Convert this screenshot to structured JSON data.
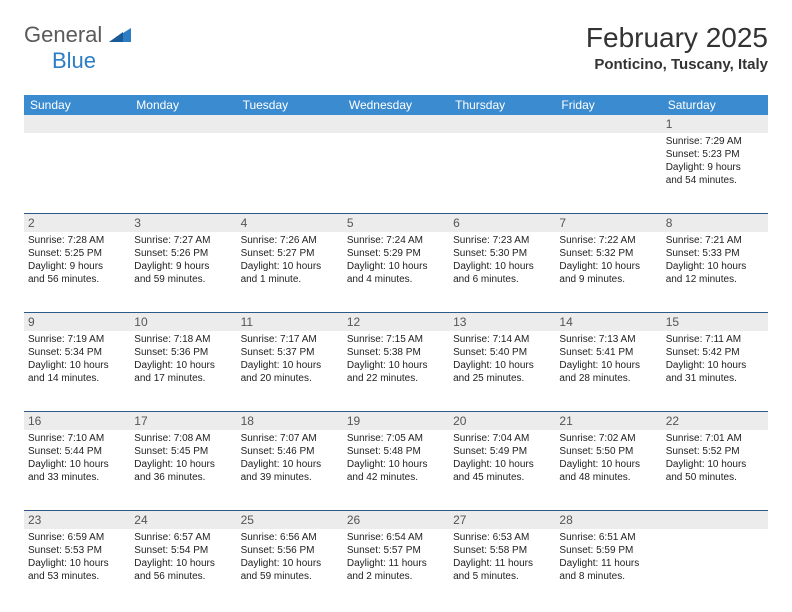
{
  "logo": {
    "general": "General",
    "blue": "Blue"
  },
  "title": "February 2025",
  "location": "Ponticino, Tuscany, Italy",
  "colors": {
    "header_bg": "#3b8bd0",
    "header_text": "#ffffff",
    "daynum_bg": "#ececec",
    "border": "#2d5a8a",
    "logo_gray": "#5a5a5a",
    "logo_blue": "#2d7dc4"
  },
  "day_labels": [
    "Sunday",
    "Monday",
    "Tuesday",
    "Wednesday",
    "Thursday",
    "Friday",
    "Saturday"
  ],
  "weeks": [
    {
      "nums": [
        "",
        "",
        "",
        "",
        "",
        "",
        "1"
      ],
      "cells": [
        [],
        [],
        [],
        [],
        [],
        [],
        [
          "Sunrise: 7:29 AM",
          "Sunset: 5:23 PM",
          "Daylight: 9 hours",
          "and 54 minutes."
        ]
      ]
    },
    {
      "nums": [
        "2",
        "3",
        "4",
        "5",
        "6",
        "7",
        "8"
      ],
      "cells": [
        [
          "Sunrise: 7:28 AM",
          "Sunset: 5:25 PM",
          "Daylight: 9 hours",
          "and 56 minutes."
        ],
        [
          "Sunrise: 7:27 AM",
          "Sunset: 5:26 PM",
          "Daylight: 9 hours",
          "and 59 minutes."
        ],
        [
          "Sunrise: 7:26 AM",
          "Sunset: 5:27 PM",
          "Daylight: 10 hours",
          "and 1 minute."
        ],
        [
          "Sunrise: 7:24 AM",
          "Sunset: 5:29 PM",
          "Daylight: 10 hours",
          "and 4 minutes."
        ],
        [
          "Sunrise: 7:23 AM",
          "Sunset: 5:30 PM",
          "Daylight: 10 hours",
          "and 6 minutes."
        ],
        [
          "Sunrise: 7:22 AM",
          "Sunset: 5:32 PM",
          "Daylight: 10 hours",
          "and 9 minutes."
        ],
        [
          "Sunrise: 7:21 AM",
          "Sunset: 5:33 PM",
          "Daylight: 10 hours",
          "and 12 minutes."
        ]
      ]
    },
    {
      "nums": [
        "9",
        "10",
        "11",
        "12",
        "13",
        "14",
        "15"
      ],
      "cells": [
        [
          "Sunrise: 7:19 AM",
          "Sunset: 5:34 PM",
          "Daylight: 10 hours",
          "and 14 minutes."
        ],
        [
          "Sunrise: 7:18 AM",
          "Sunset: 5:36 PM",
          "Daylight: 10 hours",
          "and 17 minutes."
        ],
        [
          "Sunrise: 7:17 AM",
          "Sunset: 5:37 PM",
          "Daylight: 10 hours",
          "and 20 minutes."
        ],
        [
          "Sunrise: 7:15 AM",
          "Sunset: 5:38 PM",
          "Daylight: 10 hours",
          "and 22 minutes."
        ],
        [
          "Sunrise: 7:14 AM",
          "Sunset: 5:40 PM",
          "Daylight: 10 hours",
          "and 25 minutes."
        ],
        [
          "Sunrise: 7:13 AM",
          "Sunset: 5:41 PM",
          "Daylight: 10 hours",
          "and 28 minutes."
        ],
        [
          "Sunrise: 7:11 AM",
          "Sunset: 5:42 PM",
          "Daylight: 10 hours",
          "and 31 minutes."
        ]
      ]
    },
    {
      "nums": [
        "16",
        "17",
        "18",
        "19",
        "20",
        "21",
        "22"
      ],
      "cells": [
        [
          "Sunrise: 7:10 AM",
          "Sunset: 5:44 PM",
          "Daylight: 10 hours",
          "and 33 minutes."
        ],
        [
          "Sunrise: 7:08 AM",
          "Sunset: 5:45 PM",
          "Daylight: 10 hours",
          "and 36 minutes."
        ],
        [
          "Sunrise: 7:07 AM",
          "Sunset: 5:46 PM",
          "Daylight: 10 hours",
          "and 39 minutes."
        ],
        [
          "Sunrise: 7:05 AM",
          "Sunset: 5:48 PM",
          "Daylight: 10 hours",
          "and 42 minutes."
        ],
        [
          "Sunrise: 7:04 AM",
          "Sunset: 5:49 PM",
          "Daylight: 10 hours",
          "and 45 minutes."
        ],
        [
          "Sunrise: 7:02 AM",
          "Sunset: 5:50 PM",
          "Daylight: 10 hours",
          "and 48 minutes."
        ],
        [
          "Sunrise: 7:01 AM",
          "Sunset: 5:52 PM",
          "Daylight: 10 hours",
          "and 50 minutes."
        ]
      ]
    },
    {
      "nums": [
        "23",
        "24",
        "25",
        "26",
        "27",
        "28",
        ""
      ],
      "cells": [
        [
          "Sunrise: 6:59 AM",
          "Sunset: 5:53 PM",
          "Daylight: 10 hours",
          "and 53 minutes."
        ],
        [
          "Sunrise: 6:57 AM",
          "Sunset: 5:54 PM",
          "Daylight: 10 hours",
          "and 56 minutes."
        ],
        [
          "Sunrise: 6:56 AM",
          "Sunset: 5:56 PM",
          "Daylight: 10 hours",
          "and 59 minutes."
        ],
        [
          "Sunrise: 6:54 AM",
          "Sunset: 5:57 PM",
          "Daylight: 11 hours",
          "and 2 minutes."
        ],
        [
          "Sunrise: 6:53 AM",
          "Sunset: 5:58 PM",
          "Daylight: 11 hours",
          "and 5 minutes."
        ],
        [
          "Sunrise: 6:51 AM",
          "Sunset: 5:59 PM",
          "Daylight: 11 hours",
          "and 8 minutes."
        ],
        []
      ]
    }
  ]
}
